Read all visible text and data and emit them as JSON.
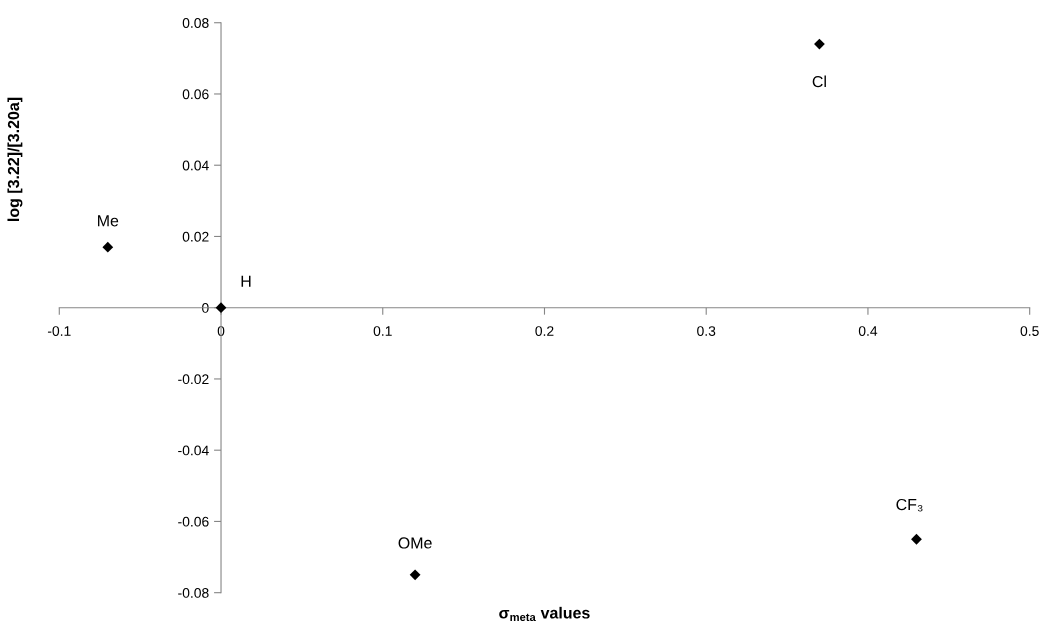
{
  "chart_data": {
    "type": "scatter",
    "xlabel": "σ$_{meta}$ values",
    "ylabel": "log [3.22]/[3.20a]",
    "x": [
      -0.07,
      0,
      0.12,
      0.37,
      0.43
    ],
    "values": [
      0.017,
      0,
      -0.075,
      0.074,
      -0.065
    ],
    "color": "#000000",
    "marker": "diamond",
    "xlim": [
      -0.1,
      0.5
    ],
    "xticks": [
      -0.1,
      0,
      0.1,
      0.2,
      0.3,
      0.4,
      0.5
    ],
    "ylim": [
      -0.08,
      0.08
    ],
    "yticks": [
      -0.08,
      -0.06,
      -0.04,
      -0.02,
      0,
      0.02,
      0.04,
      0.06,
      0.08
    ],
    "grid": false,
    "legend": false,
    "annotations": [
      {
        "text": "Me",
        "x": -0.07,
        "y": 0.017
      },
      {
        "text": "H",
        "x": 0,
        "y": 0
      },
      {
        "text": "OMe",
        "x": 0.12,
        "y": -0.075
      },
      {
        "text": "Cl",
        "x": 0.37,
        "y": 0.074
      },
      {
        "text": "CF₃",
        "x": 0.43,
        "y": -0.065
      }
    ]
  }
}
